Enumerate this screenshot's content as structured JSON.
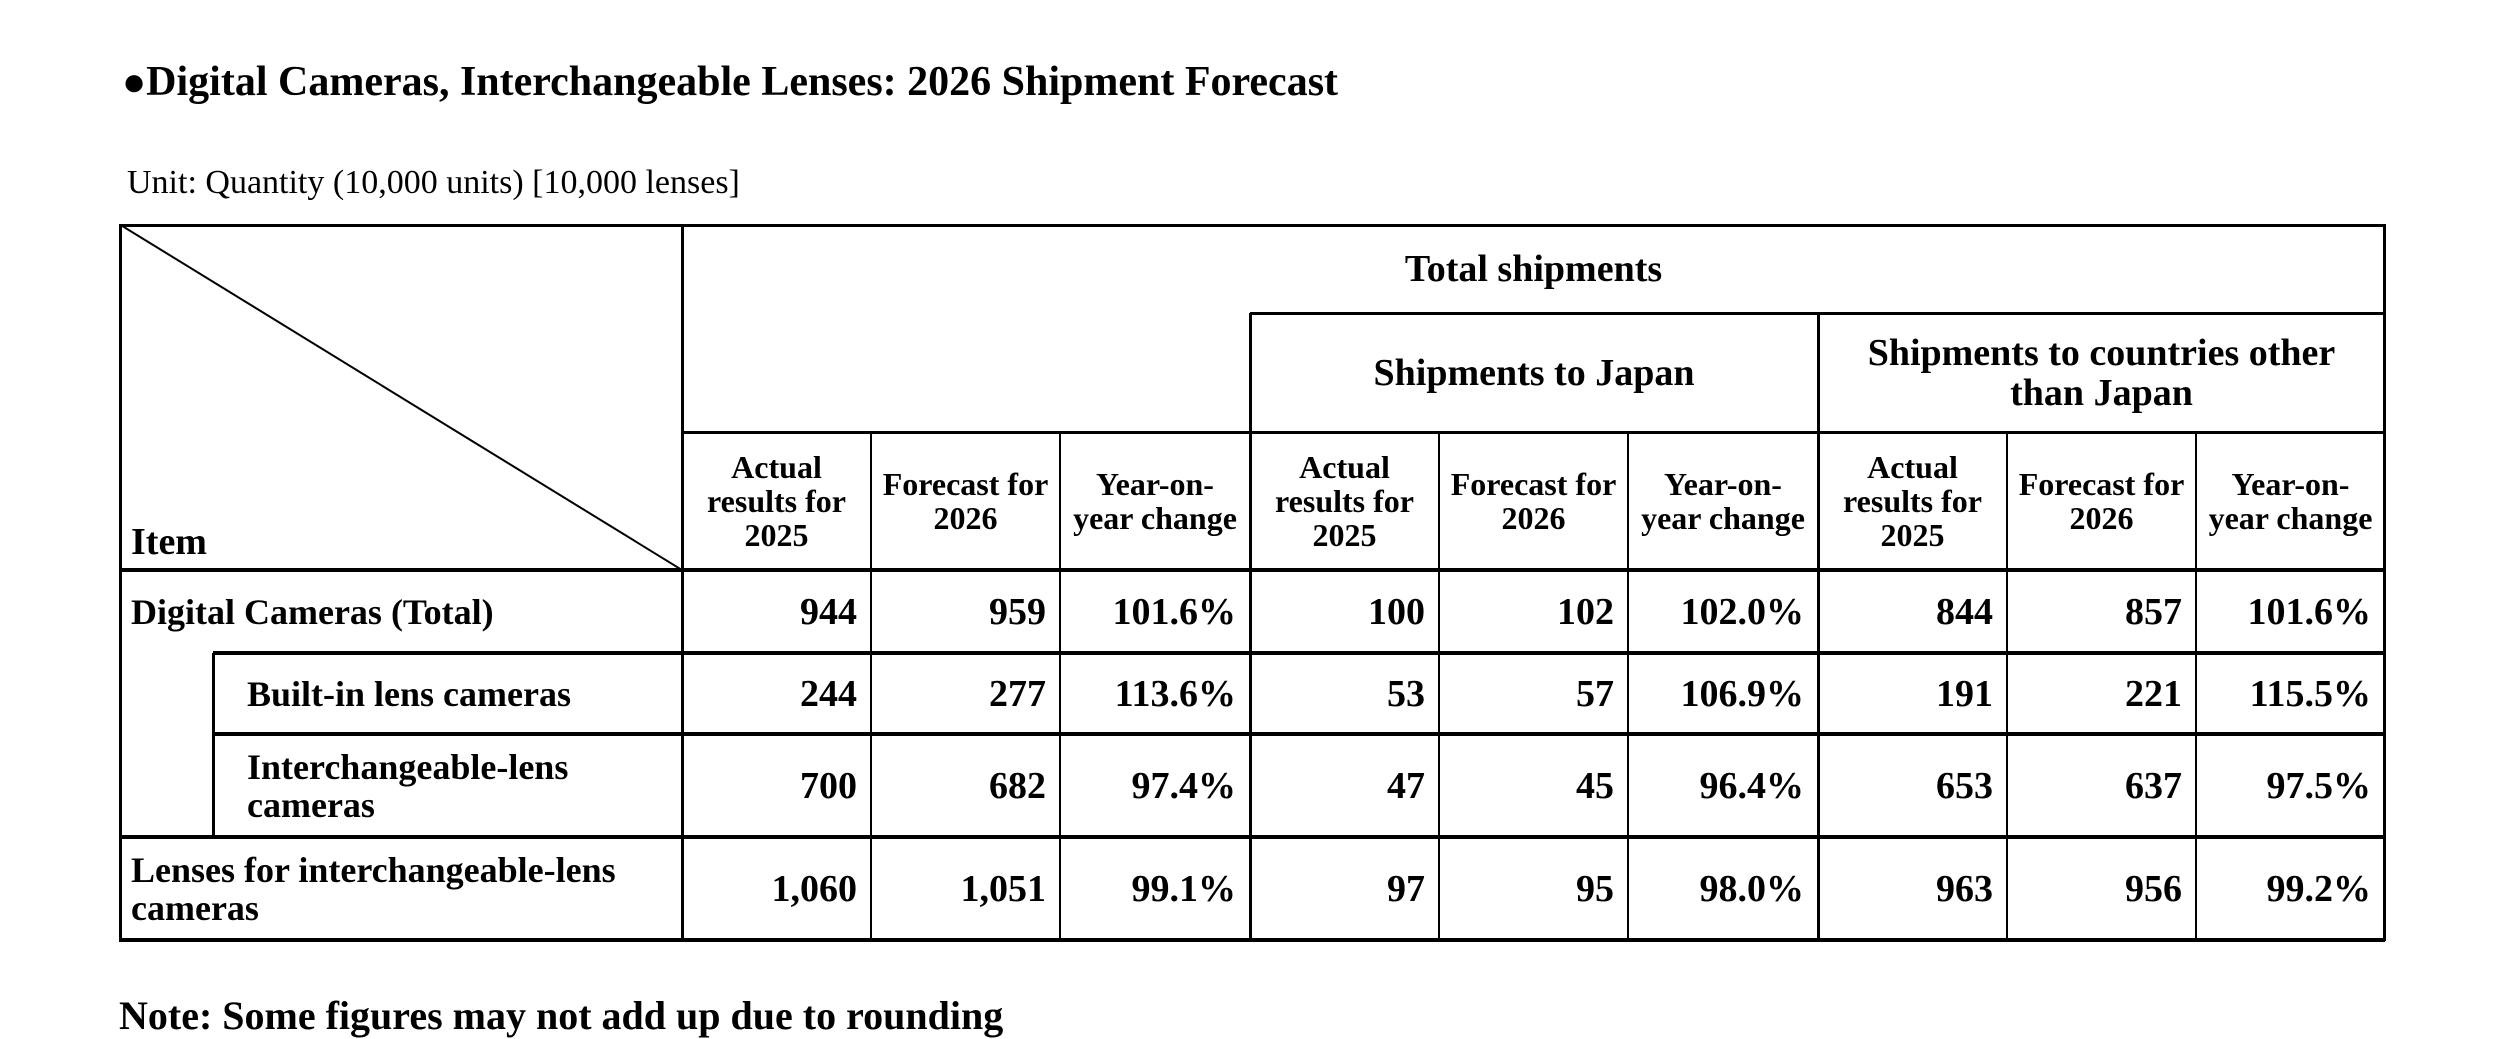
{
  "document": {
    "title_bullet": "●",
    "title": "Digital Cameras, Interchangeable Lenses: 2026 Shipment Forecast",
    "unit": "Unit: Quantity (10,000 units) [10,000 lenses]",
    "note": "Note: Some figures may not add up due to rounding"
  },
  "table": {
    "corner_label": "Item",
    "group_header": "Total shipments",
    "subgroups": [
      "Shipments to Japan",
      "Shipments to countries other than Japan"
    ],
    "columns": [
      "Actual results for 2025",
      "Forecast for 2026",
      "Year-on-year change",
      "Actual results for 2025",
      "Forecast for 2026",
      "Year-on-year change",
      "Actual results for 2025",
      "Forecast for 2026",
      "Year-on-year change"
    ],
    "rows": [
      {
        "label": "Digital Cameras (Total)",
        "values": [
          "944",
          "959",
          "101.6%",
          "100",
          "102",
          "102.0%",
          "844",
          "857",
          "101.6%"
        ]
      },
      {
        "label": "Built-in lens cameras",
        "values": [
          "244",
          "277",
          "113.6%",
          "53",
          "57",
          "106.9%",
          "191",
          "221",
          "115.5%"
        ]
      },
      {
        "label": "Interchangeable-lens cameras",
        "values": [
          "700",
          "682",
          "97.4%",
          "47",
          "45",
          "96.4%",
          "653",
          "637",
          "97.5%"
        ]
      },
      {
        "label": "Lenses for interchangeable-lens cameras",
        "values": [
          "1,060",
          "1,051",
          "99.1%",
          "97",
          "95",
          "98.0%",
          "963",
          "956",
          "99.2%"
        ]
      }
    ]
  },
  "chart_data": {
    "type": "table",
    "title": "Digital Cameras, Interchangeable Lenses: 2026 Shipment Forecast",
    "unit": "Quantity (10,000 units) [10,000 lenses]",
    "columns": [
      "Item",
      "Total: Actual results for 2025",
      "Total: Forecast for 2026",
      "Total: Year-on-year change",
      "Japan: Actual results for 2025",
      "Japan: Forecast for 2026",
      "Japan: Year-on-year change",
      "Other than Japan: Actual results for 2025",
      "Other than Japan: Forecast for 2026",
      "Other than Japan: Year-on-year change"
    ],
    "rows": [
      [
        "Digital Cameras (Total)",
        944,
        959,
        "101.6%",
        100,
        102,
        "102.0%",
        844,
        857,
        "101.6%"
      ],
      [
        "Built-in lens cameras",
        244,
        277,
        "113.6%",
        53,
        57,
        "106.9%",
        191,
        221,
        "115.5%"
      ],
      [
        "Interchangeable-lens cameras",
        700,
        682,
        "97.4%",
        47,
        45,
        "96.4%",
        653,
        637,
        "97.5%"
      ],
      [
        "Lenses for interchangeable-lens cameras",
        1060,
        1051,
        "99.1%",
        97,
        95,
        "98.0%",
        963,
        956,
        "99.2%"
      ]
    ]
  }
}
